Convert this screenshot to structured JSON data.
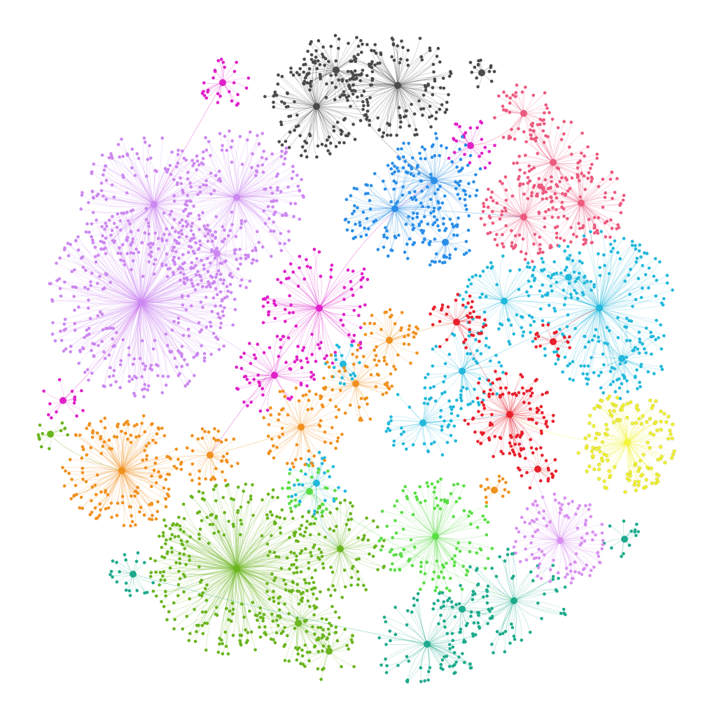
{
  "graph": {
    "type": "network",
    "layout": "force-directed",
    "background": "#ffffff",
    "communities": [
      {
        "id": "gray",
        "color": "#4a4a4a"
      },
      {
        "id": "magenta",
        "color": "#e020c8"
      },
      {
        "id": "violet",
        "color": "#cc88f0"
      },
      {
        "id": "blue",
        "color": "#2a8ee8"
      },
      {
        "id": "pink",
        "color": "#ec5a7e"
      },
      {
        "id": "cyan",
        "color": "#22b8dc"
      },
      {
        "id": "red",
        "color": "#e8202c"
      },
      {
        "id": "orange",
        "color": "#f0901e"
      },
      {
        "id": "yellow",
        "color": "#f4f43c"
      },
      {
        "id": "olive-green",
        "color": "#6ab41e"
      },
      {
        "id": "light-green",
        "color": "#5ade46"
      },
      {
        "id": "teal",
        "color": "#1eaa8c"
      },
      {
        "id": "lavender",
        "color": "#d890f0"
      }
    ]
  }
}
